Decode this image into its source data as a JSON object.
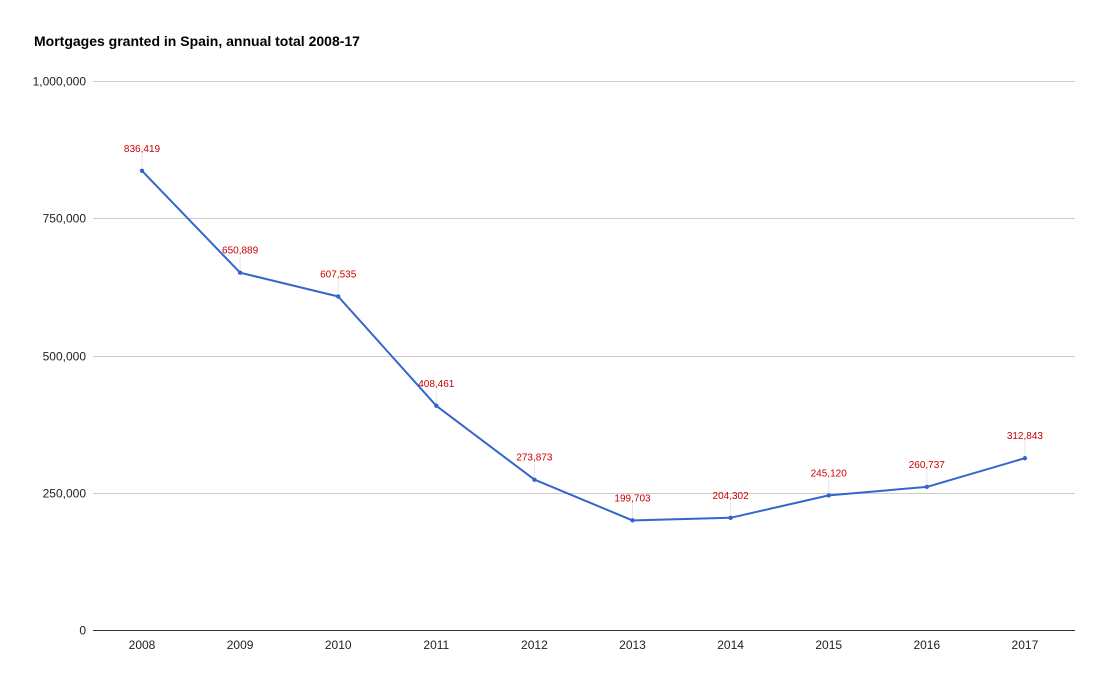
{
  "chart_data": {
    "type": "line",
    "title": "Mortgages granted in Spain, annual total 2008-17",
    "xlabel": "",
    "ylabel": "",
    "categories": [
      "2008",
      "2009",
      "2010",
      "2011",
      "2012",
      "2013",
      "2014",
      "2015",
      "2016",
      "2017"
    ],
    "series": [
      {
        "values": [
          836419,
          650889,
          607535,
          408461,
          273873,
          199703,
          204302,
          245120,
          260737,
          312843
        ],
        "data_labels": [
          "836,419",
          "650,889",
          "607,535",
          "408,461",
          "273,873",
          "199,703",
          "204,302",
          "245,120",
          "260,737",
          "312,843"
        ],
        "color": "#3366cc"
      }
    ],
    "ylim": [
      0,
      1000000
    ],
    "y_ticks": [
      0,
      250000,
      500000,
      750000,
      1000000
    ],
    "y_tick_labels": [
      "0",
      "250,000",
      "500,000",
      "750,000",
      "1,000,000"
    ],
    "grid": true,
    "legend": "none",
    "data_label_color": "#cc0000"
  }
}
